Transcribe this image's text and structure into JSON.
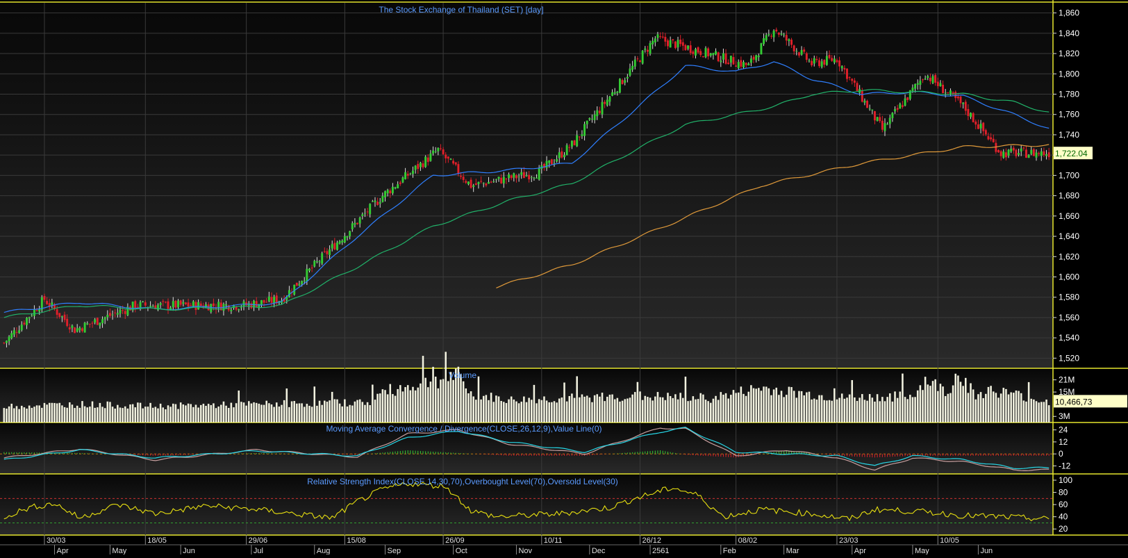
{
  "colors": {
    "background": "#000000",
    "panel_bg_top": "#0b0b0b",
    "panel_bg_bottom": "#2a2a2a",
    "border": "#e6e62e",
    "title": "#5b9bff",
    "candle_up": "#33cc33",
    "candle_down": "#e0202a",
    "ma_short": "#2f7fff",
    "ma_mid": "#21b36a",
    "ma_long": "#e09a3a",
    "volume": "#f2f2e0",
    "macd": "#c8a0a0",
    "macd_signal": "#27d6e6",
    "rsi": "#e8e010",
    "last_value_bg": "#ffffc8",
    "last_value_text": "#006600"
  },
  "chart_data": [
    {
      "type": "candlestick",
      "title": "The Stock Exchange of Thailand (SET) [day]",
      "ylim": [
        1510,
        1870
      ],
      "y_ticks": [
        "1,520",
        "1,540",
        "1,560",
        "1,580",
        "1,600",
        "1,620",
        "1,640",
        "1,660",
        "1,680",
        "1,700",
        "1,720",
        "1,740",
        "1,760",
        "1,780",
        "1,800",
        "1,820",
        "1,840",
        "1,860"
      ],
      "last_value": "1,722.04",
      "key_points": {
        "x_index": [
          0,
          16,
          28,
          52,
          95,
          110,
          150,
          172,
          185,
          212,
          225,
          258,
          272,
          295,
          305,
          320,
          330,
          348,
          365,
          380,
          395,
          414
        ],
        "close": [
          1535,
          1578,
          1548,
          1572,
          1572,
          1578,
          1680,
          1725,
          1690,
          1703,
          1730,
          1835,
          1825,
          1808,
          1845,
          1810,
          1815,
          1745,
          1800,
          1768,
          1722,
          1722
        ]
      },
      "series": [
        {
          "name": "",
          "color_key": "ma_short",
          "x_index": [
            0,
            30,
            60,
            95,
            110,
            140,
            170,
            200,
            225,
            250,
            270,
            290,
            305,
            320,
            340,
            360,
            380,
            400,
            414
          ],
          "values": [
            1565,
            1575,
            1568,
            1572,
            1575,
            1640,
            1700,
            1705,
            1712,
            1765,
            1808,
            1802,
            1812,
            1795,
            1780,
            1782,
            1778,
            1760,
            1746
          ]
        },
        {
          "name": "",
          "color_key": "ma_mid",
          "x_index": [
            0,
            30,
            60,
            95,
            110,
            140,
            170,
            200,
            225,
            250,
            270,
            290,
            305,
            320,
            340,
            360,
            380,
            400,
            414
          ],
          "values": [
            1560,
            1572,
            1568,
            1570,
            1572,
            1610,
            1650,
            1675,
            1692,
            1725,
            1750,
            1760,
            1768,
            1780,
            1784,
            1782,
            1780,
            1772,
            1762
          ]
        },
        {
          "name": "",
          "color_key": "ma_long",
          "x_index": [
            195,
            225,
            260,
            300,
            340,
            380,
            414
          ],
          "values": [
            1590,
            1612,
            1648,
            1690,
            1712,
            1728,
            1730
          ]
        }
      ],
      "x_labels": [
        {
          "label": "30/03",
          "x_index": 16
        },
        {
          "label": "18/05",
          "x_index": 56
        },
        {
          "label": "29/06",
          "x_index": 96
        },
        {
          "label": "15/08",
          "x_index": 135
        },
        {
          "label": "26/09",
          "x_index": 174
        },
        {
          "label": "10/11",
          "x_index": 213
        },
        {
          "label": "26/12",
          "x_index": 252
        },
        {
          "label": "08/02",
          "x_index": 290
        },
        {
          "label": "23/03",
          "x_index": 330
        },
        {
          "label": "10/05",
          "x_index": 370
        }
      ],
      "month_labels": [
        {
          "label": "Apr",
          "x_index": 20
        },
        {
          "label": "May",
          "x_index": 42
        },
        {
          "label": "Jun",
          "x_index": 70
        },
        {
          "label": "Jul",
          "x_index": 98
        },
        {
          "label": "Aug",
          "x_index": 123
        },
        {
          "label": "Sep",
          "x_index": 151
        },
        {
          "label": "Oct",
          "x_index": 178
        },
        {
          "label": "Nov",
          "x_index": 203
        },
        {
          "label": "Dec",
          "x_index": 232
        },
        {
          "label": "2561",
          "x_index": 256
        },
        {
          "label": "Feb",
          "x_index": 284
        },
        {
          "label": "Mar",
          "x_index": 309
        },
        {
          "label": "Apr",
          "x_index": 336
        },
        {
          "label": "May",
          "x_index": 360
        },
        {
          "label": "Jun",
          "x_index": 386
        }
      ],
      "n_bars": 415
    },
    {
      "type": "bar",
      "title": "Volume",
      "ylim": [
        0,
        26000000
      ],
      "y_ticks": [
        "21M",
        "15M",
        "3M"
      ],
      "last_value": "10,466,73",
      "key_points": {
        "x_index": [
          0,
          30,
          60,
          100,
          145,
          150,
          180,
          185,
          200,
          250,
          280,
          300,
          330,
          360,
          365,
          374,
          378,
          385,
          390,
          400,
          414
        ],
        "values": [
          8,
          9,
          8,
          9,
          10,
          15,
          23,
          14,
          11,
          13,
          12,
          17,
          12,
          13,
          21,
          15,
          25,
          13,
          16,
          14,
          10
        ]
      },
      "value_unit_millions": true
    },
    {
      "type": "line",
      "title": "Moving Average Convergence / Divergence(CLOSE,26,12,9),Value Line(0)",
      "ylim": [
        -20,
        30
      ],
      "y_ticks": [
        "24",
        "12",
        "0",
        "-12"
      ],
      "series": [
        {
          "name": "",
          "color_key": "macd",
          "x_index": [
            0,
            30,
            60,
            100,
            140,
            160,
            180,
            200,
            230,
            260,
            270,
            290,
            310,
            330,
            345,
            360,
            380,
            400
          ],
          "values": [
            -4,
            5,
            -6,
            4,
            -3,
            20,
            24,
            10,
            0,
            26,
            25,
            -2,
            4,
            -4,
            -16,
            -4,
            -8,
            -16
          ]
        },
        {
          "name": "",
          "color_key": "macd_signal",
          "x_index": [
            0,
            30,
            60,
            100,
            140,
            160,
            180,
            200,
            230,
            260,
            270,
            290,
            310,
            330,
            345,
            360,
            380,
            400
          ],
          "values": [
            -6,
            4,
            -4,
            3,
            -2,
            16,
            23,
            12,
            2,
            22,
            26,
            2,
            0,
            -2,
            -12,
            -2,
            -6,
            -14
          ]
        }
      ]
    },
    {
      "type": "line",
      "title": "Relative Strength Index(CLOSE,14,30,70),Overbought Level(70),Oversold Level(30)",
      "ylim": [
        10,
        108
      ],
      "y_ticks": [
        "100",
        "80",
        "60",
        "40",
        "20"
      ],
      "levels": [
        70,
        30
      ],
      "series": [
        {
          "name": "",
          "color_key": "rsi",
          "x_index": [
            0,
            10,
            20,
            30,
            45,
            60,
            80,
            100,
            130,
            140,
            150,
            160,
            175,
            185,
            195,
            220,
            240,
            250,
            265,
            275,
            285,
            300,
            320,
            335,
            345,
            365,
            380,
            395,
            414
          ],
          "values": [
            40,
            55,
            62,
            38,
            60,
            45,
            58,
            52,
            38,
            65,
            85,
            95,
            90,
            50,
            40,
            45,
            55,
            70,
            88,
            75,
            40,
            52,
            45,
            36,
            52,
            48,
            42,
            40,
            36
          ]
        }
      ]
    }
  ]
}
